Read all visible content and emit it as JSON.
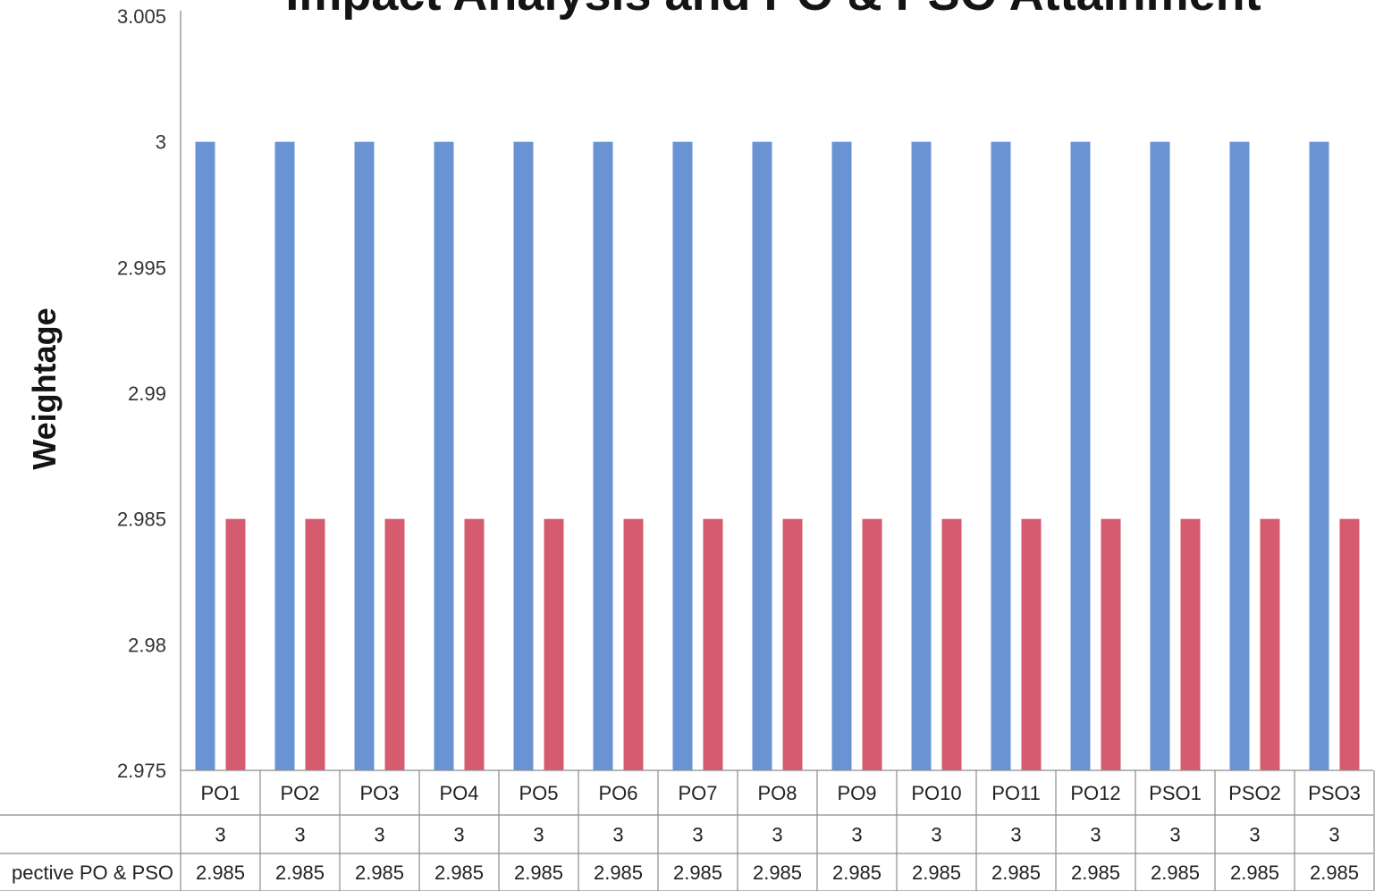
{
  "chart_data": {
    "type": "bar",
    "title": "Impact Analysis and PO & PSO Attainment",
    "ylabel": "Weightage",
    "xlabel": "",
    "ylim": [
      2.975,
      3.005
    ],
    "y_ticks": [
      "3.005",
      "3",
      "2.995",
      "2.99",
      "2.985",
      "2.98",
      "2.975"
    ],
    "categories": [
      "PO1",
      "PO2",
      "PO3",
      "PO4",
      "PO5",
      "PO6",
      "PO7",
      "PO8",
      "PO9",
      "PO10",
      "PO11",
      "PO12",
      "PSO1",
      "PSO2",
      "PSO3"
    ],
    "series": [
      {
        "color": "#6a93d4",
        "values": [
          3,
          3,
          3,
          3,
          3,
          3,
          3,
          3,
          3,
          3,
          3,
          3,
          3,
          3,
          3
        ],
        "table_values": [
          "3",
          "3",
          "3",
          "3",
          "3",
          "3",
          "3",
          "3",
          "3",
          "3",
          "3",
          "3",
          "3",
          "3",
          "3"
        ]
      },
      {
        "name": "pective PO & PSO",
        "color": "#d45c6e",
        "values": [
          2.985,
          2.985,
          2.985,
          2.985,
          2.985,
          2.985,
          2.985,
          2.985,
          2.985,
          2.985,
          2.985,
          2.985,
          2.985,
          2.985,
          2.985
        ],
        "table_values": [
          "2.985",
          "2.985",
          "2.985",
          "2.985",
          "2.985",
          "2.985",
          "2.985",
          "2.985",
          "2.985",
          "2.985",
          "2.985",
          "2.985",
          "2.985",
          "2.985",
          "2.985"
        ]
      }
    ],
    "grid": false,
    "legend": "data-table"
  }
}
